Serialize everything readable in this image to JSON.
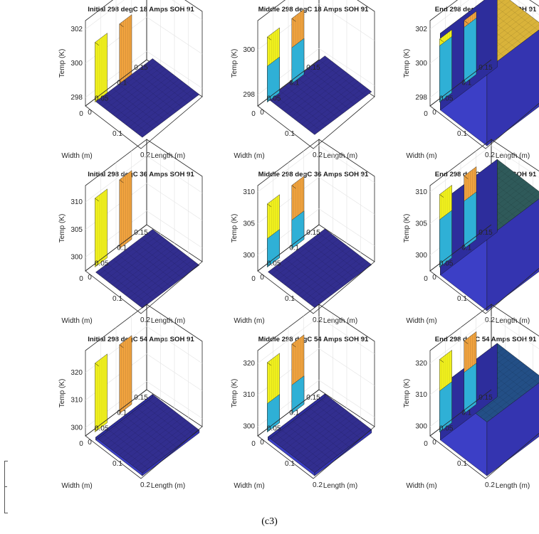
{
  "figure": {
    "caption": "(c3)"
  },
  "chart_data": [
    {
      "type": "surface",
      "title": "Initial 298 degC 18 Amps SOH 91",
      "zlabel": "Temp (K)",
      "xlabel": "Length (m)",
      "ylabel": "Width (m)",
      "zticks": [
        "298",
        "300",
        "302"
      ],
      "xticks": [
        "0",
        "0.1",
        "0.2"
      ],
      "yticks": [
        "0",
        "0.05",
        "0.1",
        "0.15"
      ],
      "zlim": [
        297.5,
        302.5
      ],
      "tab_peak_K": 301,
      "tab_side_K": 301,
      "body_K": 298,
      "phase": "initial"
    },
    {
      "type": "surface",
      "title": "Middle 298 degC 18 Amps SOH 91",
      "zlabel": "Temp (K)",
      "xlabel": "Length (m)",
      "ylabel": "Width (m)",
      "zticks": [
        "298",
        "300"
      ],
      "xticks": [
        "0",
        "0.1",
        "0.2"
      ],
      "yticks": [
        "0",
        "0.05",
        "0.1",
        "0.15"
      ],
      "zlim": [
        297.5,
        301.3
      ],
      "tab_peak_K": 300.4,
      "tab_side_K": 299.1,
      "body_K": 298,
      "phase": "middle"
    },
    {
      "type": "surface",
      "title": "End 298 degC 18 Amps SOH 91",
      "zlabel": "Temp (K)",
      "xlabel": "Length (m)",
      "ylabel": "Width (m)",
      "zticks": [
        "298",
        "300",
        "302"
      ],
      "xticks": [
        "0",
        "0.1",
        "0.2"
      ],
      "yticks": [
        "0",
        "0.05",
        "0.1",
        "0.15"
      ],
      "zlim": [
        297.5,
        302.5
      ],
      "tab_peak_K": 301.2,
      "tab_side_K": 300.8,
      "body_K": 302,
      "phase": "end"
    },
    {
      "type": "surface",
      "title": "Initial 298 degC 36 Amps SOH 91",
      "zlabel": "Temp (K)",
      "xlabel": "Length (m)",
      "ylabel": "Width (m)",
      "zticks": [
        "300",
        "305",
        "310"
      ],
      "xticks": [
        "0",
        "0.1",
        "0.2"
      ],
      "yticks": [
        "0",
        "0.05",
        "0.1",
        "0.15"
      ],
      "zlim": [
        297.5,
        313
      ],
      "tab_peak_K": 310,
      "tab_side_K": 310,
      "body_K": 298,
      "phase": "initial"
    },
    {
      "type": "surface",
      "title": "Middle 298 degC 36 Amps SOH 91",
      "zlabel": "Temp (K)",
      "xlabel": "Length (m)",
      "ylabel": "Width (m)",
      "zticks": [
        "300",
        "305",
        "310"
      ],
      "xticks": [
        "0",
        "0.1",
        "0.2"
      ],
      "yticks": [
        "0",
        "0.05",
        "0.1",
        "0.15"
      ],
      "zlim": [
        297.5,
        311
      ],
      "tab_peak_K": 307.5,
      "tab_side_K": 302,
      "body_K": 298,
      "phase": "middle"
    },
    {
      "type": "surface",
      "title": "End 298 degC 36 Amps SOH 91",
      "zlabel": "Temp (K)",
      "xlabel": "Length (m)",
      "ylabel": "Width (m)",
      "zticks": [
        "300",
        "305",
        "310"
      ],
      "xticks": [
        "0",
        "0.1",
        "0.2"
      ],
      "yticks": [
        "0",
        "0.05",
        "0.1",
        "0.15"
      ],
      "zlim": [
        297.5,
        311
      ],
      "tab_peak_K": 309,
      "tab_side_K": 305,
      "body_K": 309,
      "phase": "end"
    },
    {
      "type": "surface",
      "title": "Initial 298 degC 54 Amps SOH 91",
      "zlabel": "Temp (K)",
      "xlabel": "Length (m)",
      "ylabel": "Width (m)",
      "zticks": [
        "300",
        "310",
        "320"
      ],
      "xticks": [
        "0",
        "0.1",
        "0.2"
      ],
      "yticks": [
        "0",
        "0.05",
        "0.1",
        "0.15"
      ],
      "zlim": [
        297,
        328
      ],
      "tab_peak_K": 322,
      "tab_side_K": 322,
      "body_K": 298,
      "phase": "initial"
    },
    {
      "type": "surface",
      "title": "Middle 298 degC 54 Amps SOH 91",
      "zlabel": "Temp (K)",
      "xlabel": "Length (m)",
      "ylabel": "Width (m)",
      "zticks": [
        "300",
        "310",
        "320"
      ],
      "xticks": [
        "0",
        "0.1",
        "0.2"
      ],
      "yticks": [
        "0",
        "0.05",
        "0.1",
        "0.15"
      ],
      "zlim": [
        297,
        324
      ],
      "tab_peak_K": 319,
      "tab_side_K": 306,
      "body_K": 298,
      "phase": "middle"
    },
    {
      "type": "surface",
      "title": "End 298 degC 54 Amps SOH 91",
      "zlabel": "Temp (K)",
      "xlabel": "Length (m)",
      "ylabel": "Width (m)",
      "zticks": [
        "300",
        "310",
        "320"
      ],
      "xticks": [
        "0",
        "0.1",
        "0.2"
      ],
      "yticks": [
        "0",
        "0.05",
        "0.1",
        "0.15"
      ],
      "zlim": [
        297,
        324
      ],
      "tab_peak_K": 320,
      "tab_side_K": 310,
      "body_K": 314,
      "phase": "end"
    }
  ],
  "colors": {
    "body_initial": "#322e8f",
    "body_end_18": "#d9b33a",
    "body_end_36": "#2f5a5a",
    "body_end_54": "#234f86",
    "tab_left": "#f0a33f",
    "tab_right": "#f2f21e",
    "tab_mid": "#2fb0d6",
    "wall": "#3c3fc6"
  }
}
